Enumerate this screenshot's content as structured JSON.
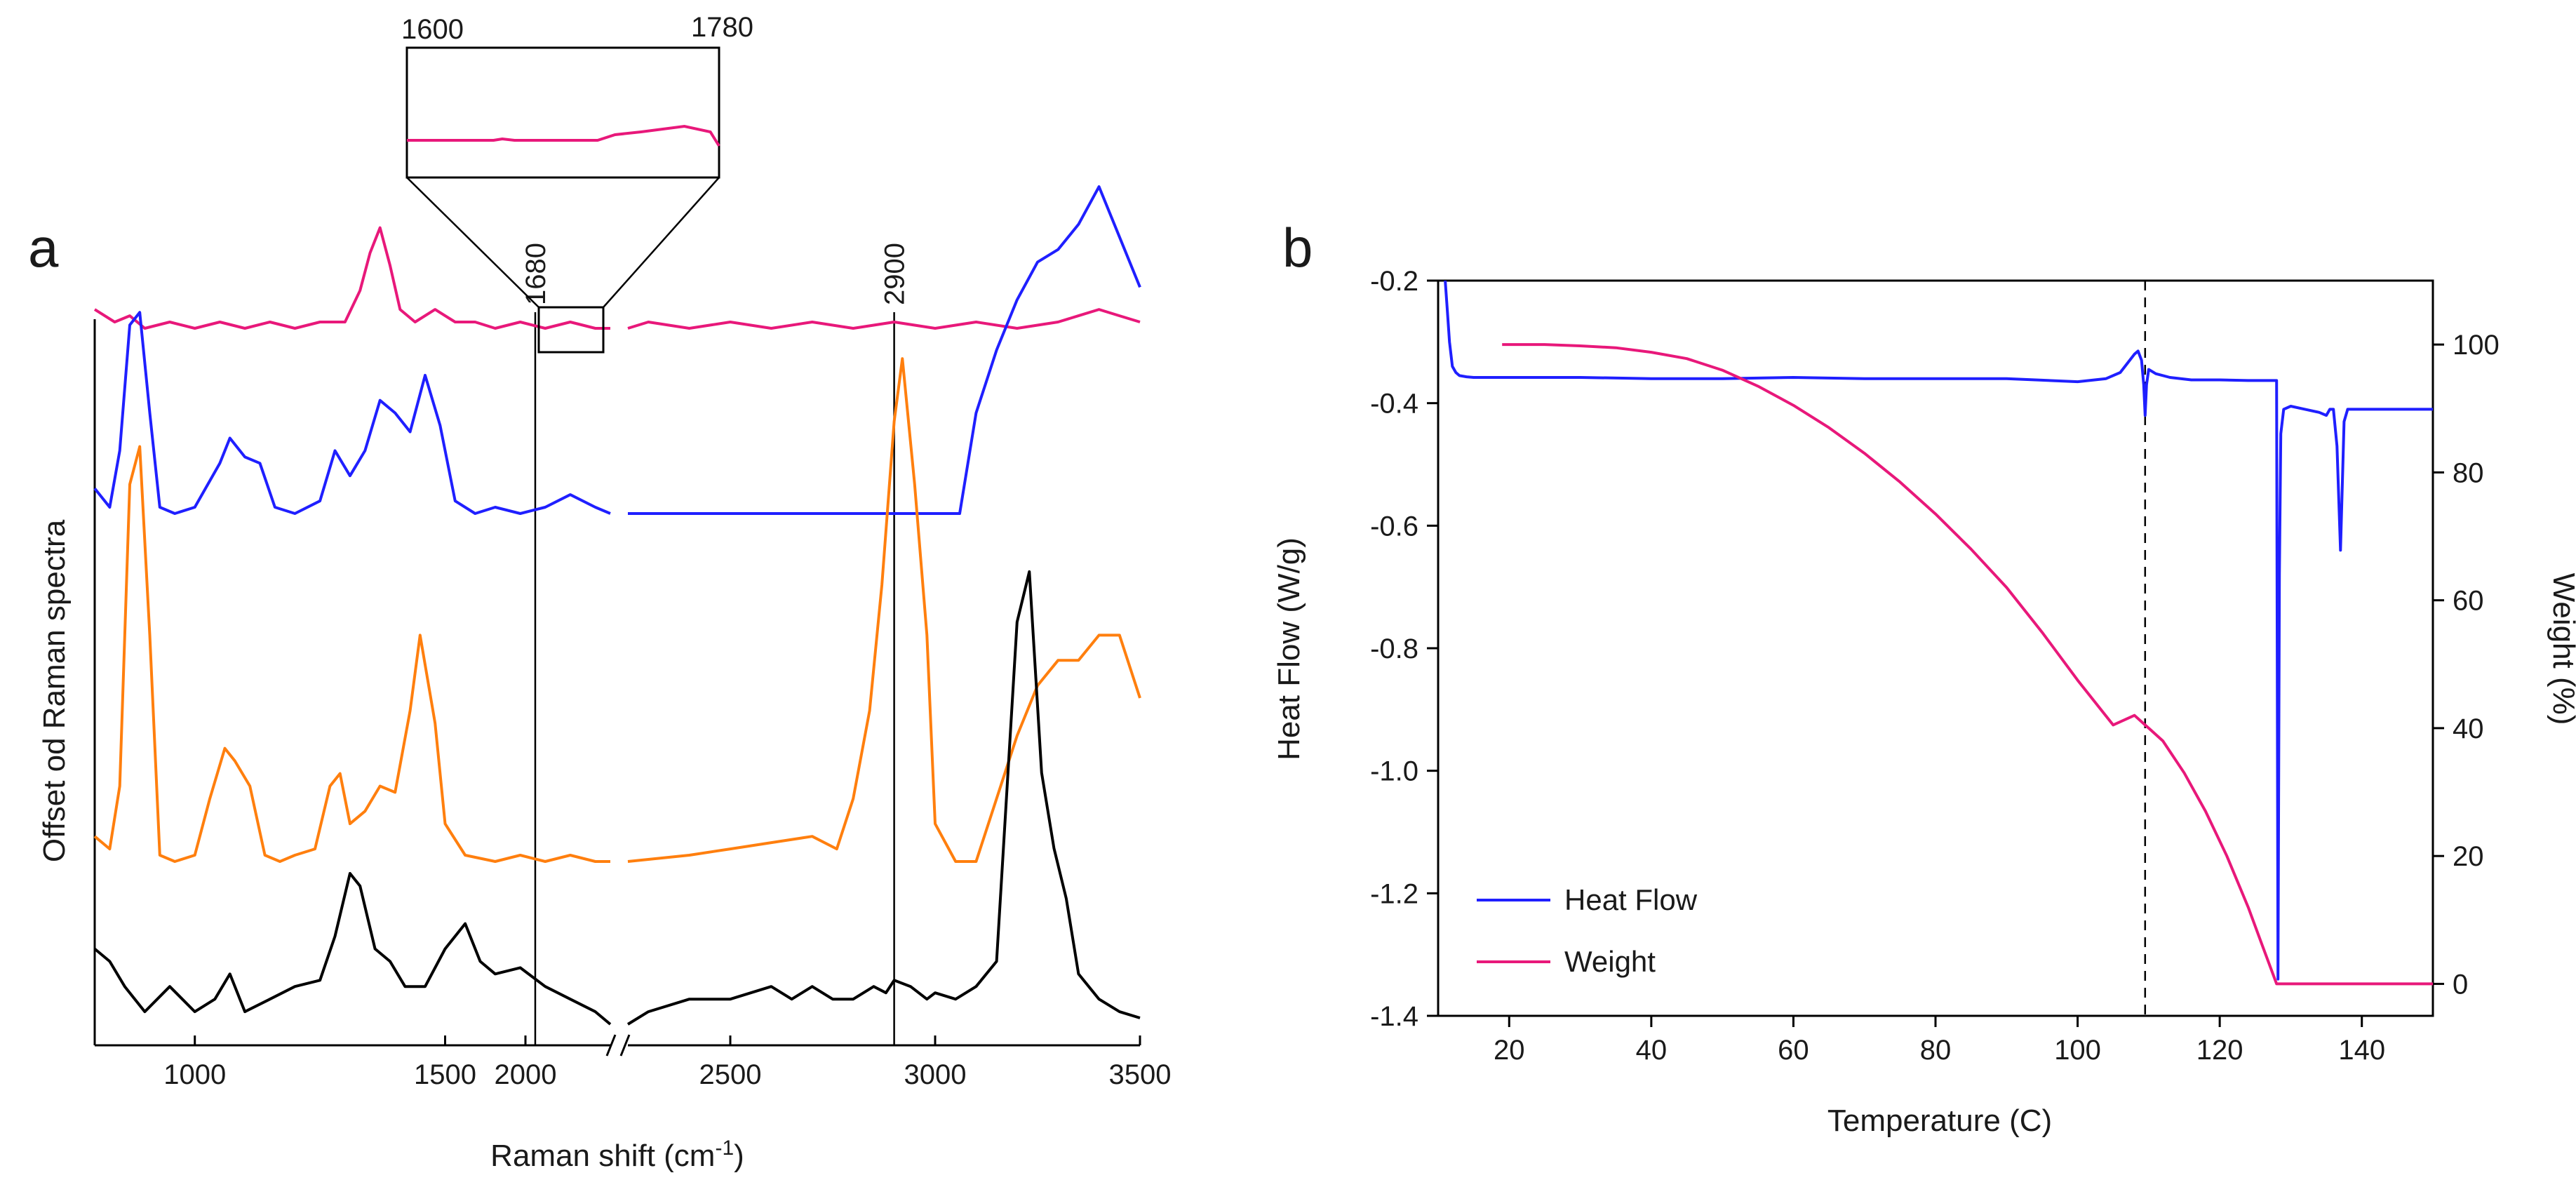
{
  "chart_data": [
    {
      "panel": "a",
      "type": "line",
      "title": "",
      "xlabel": "Raman shift (cm",
      "xlabel_sup": "-1",
      "xlabel_close": ")",
      "ylabel": "Offset od Raman spectra",
      "x_ticks": [
        {
          "value": 1000,
          "label": "1000"
        },
        {
          "value": 1500,
          "label": "1500"
        },
        {
          "value": 2000,
          "label": "2000"
        },
        {
          "value": 2500,
          "label": "2500"
        },
        {
          "value": 3000,
          "label": "3000"
        },
        {
          "value": 3500,
          "label": "3500"
        }
      ],
      "axis_break": {
        "from": 1830,
        "to": 2250
      },
      "xlim": [
        800,
        3500
      ],
      "reference_lines": [
        {
          "x": 1680,
          "label": "1680"
        },
        {
          "x": 2900,
          "label": "2900"
        }
      ],
      "inset": {
        "xlim": [
          1600,
          1780
        ],
        "left_label": "1600",
        "right_label": "1780",
        "series_color": "#e8187a"
      },
      "series": [
        {
          "name": "spectrum-pink",
          "color": "#e8187a",
          "offset": 6.2,
          "scale": 0.35,
          "x": [
            800,
            840,
            870,
            900,
            950,
            1000,
            1050,
            1100,
            1150,
            1200,
            1250,
            1300,
            1330,
            1350,
            1370,
            1390,
            1410,
            1440,
            1480,
            1520,
            1560,
            1600,
            1650,
            1700,
            1750,
            1800,
            1830,
            2250,
            2300,
            2400,
            2500,
            2600,
            2700,
            2800,
            2900,
            3000,
            3100,
            3200,
            3300,
            3350,
            3400,
            3450,
            3500
          ],
          "y": [
            0.15,
            0.05,
            0.1,
            0.0,
            0.05,
            0.0,
            0.05,
            0.0,
            0.05,
            0.0,
            0.05,
            0.05,
            0.3,
            0.6,
            0.8,
            0.5,
            0.15,
            0.05,
            0.15,
            0.05,
            0.05,
            0.0,
            0.05,
            0.0,
            0.05,
            0.0,
            0.0,
            0.0,
            0.05,
            0.0,
            0.05,
            0.0,
            0.05,
            0.0,
            0.05,
            0.0,
            0.05,
            0.0,
            0.05,
            0.1,
            0.15,
            0.1,
            0.05
          ]
        },
        {
          "name": "spectrum-blue",
          "color": "#1f1fff",
          "offset": 4.55,
          "scale": 0.35,
          "x": [
            800,
            830,
            850,
            870,
            890,
            910,
            930,
            960,
            1000,
            1050,
            1070,
            1100,
            1130,
            1160,
            1200,
            1250,
            1280,
            1310,
            1340,
            1370,
            1400,
            1430,
            1460,
            1490,
            1520,
            1560,
            1600,
            1650,
            1700,
            1750,
            1800,
            1830,
            2250,
            2400,
            2600,
            2800,
            2900,
            3000,
            3060,
            3100,
            3150,
            3200,
            3250,
            3300,
            3350,
            3400,
            3450,
            3500
          ],
          "y": [
            0.2,
            0.05,
            0.5,
            1.5,
            1.6,
            0.8,
            0.05,
            0.0,
            0.05,
            0.4,
            0.6,
            0.45,
            0.4,
            0.05,
            0.0,
            0.1,
            0.5,
            0.3,
            0.5,
            0.9,
            0.8,
            0.65,
            1.1,
            0.7,
            0.1,
            0.0,
            0.05,
            0.0,
            0.05,
            0.15,
            0.05,
            0.0,
            0.0,
            0.0,
            0.0,
            0.0,
            0.0,
            0.0,
            0.0,
            0.8,
            1.3,
            1.7,
            2.0,
            2.1,
            2.3,
            2.6,
            2.2,
            1.8
          ]
        },
        {
          "name": "spectrum-orange",
          "color": "#ff7f0e",
          "offset": 1.45,
          "scale": 0.35,
          "x": [
            800,
            830,
            850,
            870,
            890,
            910,
            930,
            960,
            1000,
            1030,
            1060,
            1080,
            1110,
            1140,
            1170,
            1200,
            1240,
            1270,
            1290,
            1310,
            1340,
            1370,
            1400,
            1430,
            1450,
            1480,
            1500,
            1540,
            1600,
            1650,
            1700,
            1750,
            1800,
            1830,
            2250,
            2400,
            2500,
            2600,
            2700,
            2760,
            2800,
            2840,
            2870,
            2900,
            2920,
            2950,
            2980,
            3000,
            3050,
            3100,
            3150,
            3200,
            3250,
            3300,
            3350,
            3400,
            3450,
            3500
          ],
          "y": [
            0.2,
            0.1,
            0.6,
            3.0,
            3.3,
            1.8,
            0.05,
            0.0,
            0.05,
            0.5,
            0.9,
            0.8,
            0.6,
            0.05,
            0.0,
            0.05,
            0.1,
            0.6,
            0.7,
            0.3,
            0.4,
            0.6,
            0.55,
            1.2,
            1.8,
            1.1,
            0.3,
            0.05,
            0.0,
            0.05,
            0.0,
            0.05,
            0.0,
            0.0,
            0.0,
            0.05,
            0.1,
            0.15,
            0.2,
            0.1,
            0.5,
            1.2,
            2.2,
            3.5,
            4.0,
            3.0,
            1.8,
            0.3,
            0.0,
            0.0,
            0.5,
            1.0,
            1.4,
            1.6,
            1.6,
            1.8,
            1.8,
            1.3
          ]
        },
        {
          "name": "spectrum-black",
          "color": "#000000",
          "offset": 0.0,
          "scale": 0.35,
          "x": [
            800,
            830,
            860,
            900,
            950,
            1000,
            1040,
            1070,
            1100,
            1150,
            1200,
            1250,
            1280,
            1310,
            1330,
            1360,
            1390,
            1420,
            1460,
            1500,
            1540,
            1570,
            1600,
            1650,
            1700,
            1750,
            1800,
            1830,
            2250,
            2300,
            2400,
            2500,
            2600,
            2650,
            2700,
            2750,
            2800,
            2850,
            2880,
            2900,
            2940,
            2980,
            3000,
            3050,
            3100,
            3150,
            3200,
            3230,
            3260,
            3290,
            3320,
            3350,
            3400,
            3450,
            3500
          ],
          "y": [
            0.6,
            0.5,
            0.3,
            0.1,
            0.3,
            0.1,
            0.2,
            0.4,
            0.1,
            0.2,
            0.3,
            0.35,
            0.7,
            1.2,
            1.1,
            0.6,
            0.5,
            0.3,
            0.3,
            0.6,
            0.8,
            0.5,
            0.4,
            0.45,
            0.3,
            0.2,
            0.1,
            0.0,
            0.0,
            0.1,
            0.2,
            0.2,
            0.3,
            0.2,
            0.3,
            0.2,
            0.2,
            0.3,
            0.25,
            0.35,
            0.3,
            0.2,
            0.25,
            0.2,
            0.3,
            0.5,
            3.2,
            3.6,
            2.0,
            1.4,
            1.0,
            0.4,
            0.2,
            0.1,
            0.05
          ]
        }
      ]
    },
    {
      "panel": "b",
      "type": "line",
      "title": "",
      "xlabel": "Temperature (C)",
      "ylabel": "Heat Flow (W/g)",
      "ylabel_right": "Weight (%)",
      "xlim": [
        10,
        150
      ],
      "ylim": [
        -1.4,
        -0.2
      ],
      "ylim_right": [
        -5,
        110
      ],
      "x_ticks": [
        20,
        40,
        60,
        80,
        100,
        120,
        140
      ],
      "y_ticks": [
        -0.2,
        -0.4,
        -0.6,
        -0.8,
        -1.0,
        -1.2,
        -1.4
      ],
      "y_tick_labels": [
        "-0.2",
        "-0.4",
        "-0.6",
        "-0.8",
        "-1.0",
        "-1.2",
        "-1.4"
      ],
      "y_right_ticks": [
        0,
        20,
        40,
        60,
        80,
        100
      ],
      "dashed_line_x": 109.5,
      "legend": {
        "placement": "bottom-left",
        "entries": [
          {
            "name": "Heat Flow",
            "color": "#1f1fff"
          },
          {
            "name": "Weight",
            "color": "#e8187a"
          }
        ]
      },
      "series": [
        {
          "name": "Heat Flow",
          "axis": "left",
          "color": "#1f1fff",
          "x": [
            11,
            11.3,
            11.6,
            12,
            12.5,
            13,
            14,
            15,
            20,
            30,
            40,
            50,
            60,
            70,
            80,
            90,
            100,
            104,
            106,
            107,
            108,
            108.5,
            109,
            109.3,
            109.5,
            109.7,
            110,
            111,
            113,
            116,
            120,
            124,
            127,
            128,
            128.2,
            128.4,
            128.6,
            129,
            130,
            132,
            134,
            135,
            135.5,
            136,
            136.5,
            137,
            137.5,
            138,
            140,
            150
          ],
          "y": [
            -0.18,
            -0.25,
            -0.3,
            -0.34,
            -0.35,
            -0.355,
            -0.357,
            -0.358,
            -0.358,
            -0.358,
            -0.36,
            -0.36,
            -0.358,
            -0.36,
            -0.36,
            -0.36,
            -0.365,
            -0.36,
            -0.35,
            -0.335,
            -0.32,
            -0.315,
            -0.33,
            -0.37,
            -0.42,
            -0.37,
            -0.345,
            -0.352,
            -0.358,
            -0.362,
            -0.362,
            -0.363,
            -0.363,
            -0.363,
            -1.34,
            -0.68,
            -0.45,
            -0.41,
            -0.405,
            -0.41,
            -0.415,
            -0.42,
            -0.41,
            -0.41,
            -0.47,
            -0.64,
            -0.43,
            -0.41,
            -0.41,
            -0.41
          ]
        },
        {
          "name": "Weight",
          "axis": "right",
          "color": "#e8187a",
          "x": [
            19,
            25,
            30,
            35,
            40,
            45,
            50,
            55,
            60,
            65,
            70,
            75,
            80,
            85,
            90,
            95,
            100,
            105,
            108,
            109.5,
            110,
            112,
            115,
            118,
            121,
            124,
            126,
            128,
            130,
            135,
            140,
            145,
            150
          ],
          "y": [
            100,
            100,
            99.8,
            99.5,
            98.8,
            97.8,
            96,
            93.5,
            90.5,
            87,
            83,
            78.5,
            73.5,
            68,
            62,
            55,
            47.5,
            40.5,
            42,
            40.5,
            40,
            38,
            33,
            27,
            20,
            12,
            6,
            0,
            0,
            0,
            0,
            0,
            0
          ]
        }
      ]
    }
  ]
}
